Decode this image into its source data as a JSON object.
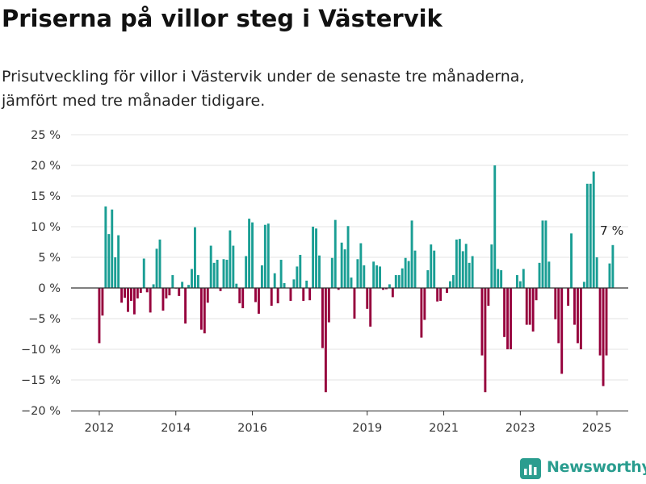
{
  "title": "Priserna på villor steg i Västervik",
  "subtitle_lines": [
    "Prisutveckling för villor i Västervik under de senaste tre månaderna,",
    "jämfört med tre månader tidigare."
  ],
  "brand": {
    "name": "Newsworthy",
    "icon": "bar-chart-logo-icon"
  },
  "colors": {
    "positive": "#1a9e94",
    "negative": "#96003c",
    "grid": "#e3e3e3",
    "zero_line": "#333333",
    "brand": "#2a9d8f"
  },
  "chart_data": {
    "type": "bar",
    "ylim": [
      -20,
      25
    ],
    "y_ticks": [
      25,
      20,
      15,
      10,
      5,
      0,
      -5,
      -10,
      -15,
      -20
    ],
    "y_tick_labels": [
      "25 %",
      "20 %",
      "15 %",
      "10 %",
      "5 %",
      "0 %",
      "−5 %",
      "−10 %",
      "−15 %",
      "−20 %"
    ],
    "x_ticks": [
      "2012",
      "2014",
      "2016",
      "2019",
      "2021",
      "2023",
      "2025"
    ],
    "grid": true,
    "legend": false,
    "annotation": {
      "text": "7 %"
    },
    "x_start": "2012-01",
    "values": [
      -9,
      -4.5,
      13.3,
      8.8,
      12.8,
      5,
      8.6,
      -2.4,
      -1.6,
      -3.9,
      -2.1,
      -4.3,
      -1.7,
      -0.8,
      4.8,
      -0.7,
      -4,
      0.6,
      6.4,
      7.9,
      -3.7,
      -1.7,
      -1.2,
      2.1,
      -0.1,
      -1.3,
      1,
      -5.8,
      0.5,
      3.1,
      9.9,
      2.1,
      -6.8,
      -7.4,
      -2.4,
      6.9,
      4.1,
      4.6,
      -0.5,
      4.7,
      4.6,
      9.4,
      6.9,
      0.7,
      -2.5,
      -3.3,
      5.2,
      11.3,
      10.7,
      -2.3,
      -4.2,
      3.7,
      10.3,
      10.5,
      -2.9,
      2.4,
      -2.5,
      4.6,
      0.8,
      0,
      -2.1,
      1.4,
      3.5,
      5.4,
      -2.1,
      1.2,
      -2,
      10,
      9.7,
      5.3,
      -9.8,
      -17,
      -5.6,
      4.9,
      11.1,
      -0.3,
      7.4,
      6.3,
      10.1,
      1.7,
      -5,
      4.7,
      7.3,
      3.7,
      -3.4,
      -6.3,
      4.3,
      3.7,
      3.5,
      -0.3,
      -0.2,
      0.6,
      -1.5,
      2.1,
      2.1,
      3.2,
      4.9,
      4.4,
      11,
      6.1,
      0,
      -8.1,
      -5.2,
      2.9,
      7.1,
      6.1,
      -2.2,
      -2.1,
      0,
      -0.8,
      1.1,
      2.1,
      7.9,
      8,
      6,
      7.2,
      4.1,
      5.2,
      0,
      0,
      -11,
      -17,
      -2.9,
      7.1,
      20,
      3.1,
      2.9,
      -8,
      -10,
      -10,
      0,
      2.1,
      1.1,
      3.1,
      -6,
      -6,
      -7.1,
      -2,
      4.1,
      11,
      11,
      4.3,
      0,
      -5.1,
      -9,
      -14,
      0,
      -2.9,
      8.9,
      -6,
      -9,
      -10,
      1,
      17,
      17,
      19,
      5,
      -11,
      -16,
      -11,
      4,
      7
    ]
  }
}
